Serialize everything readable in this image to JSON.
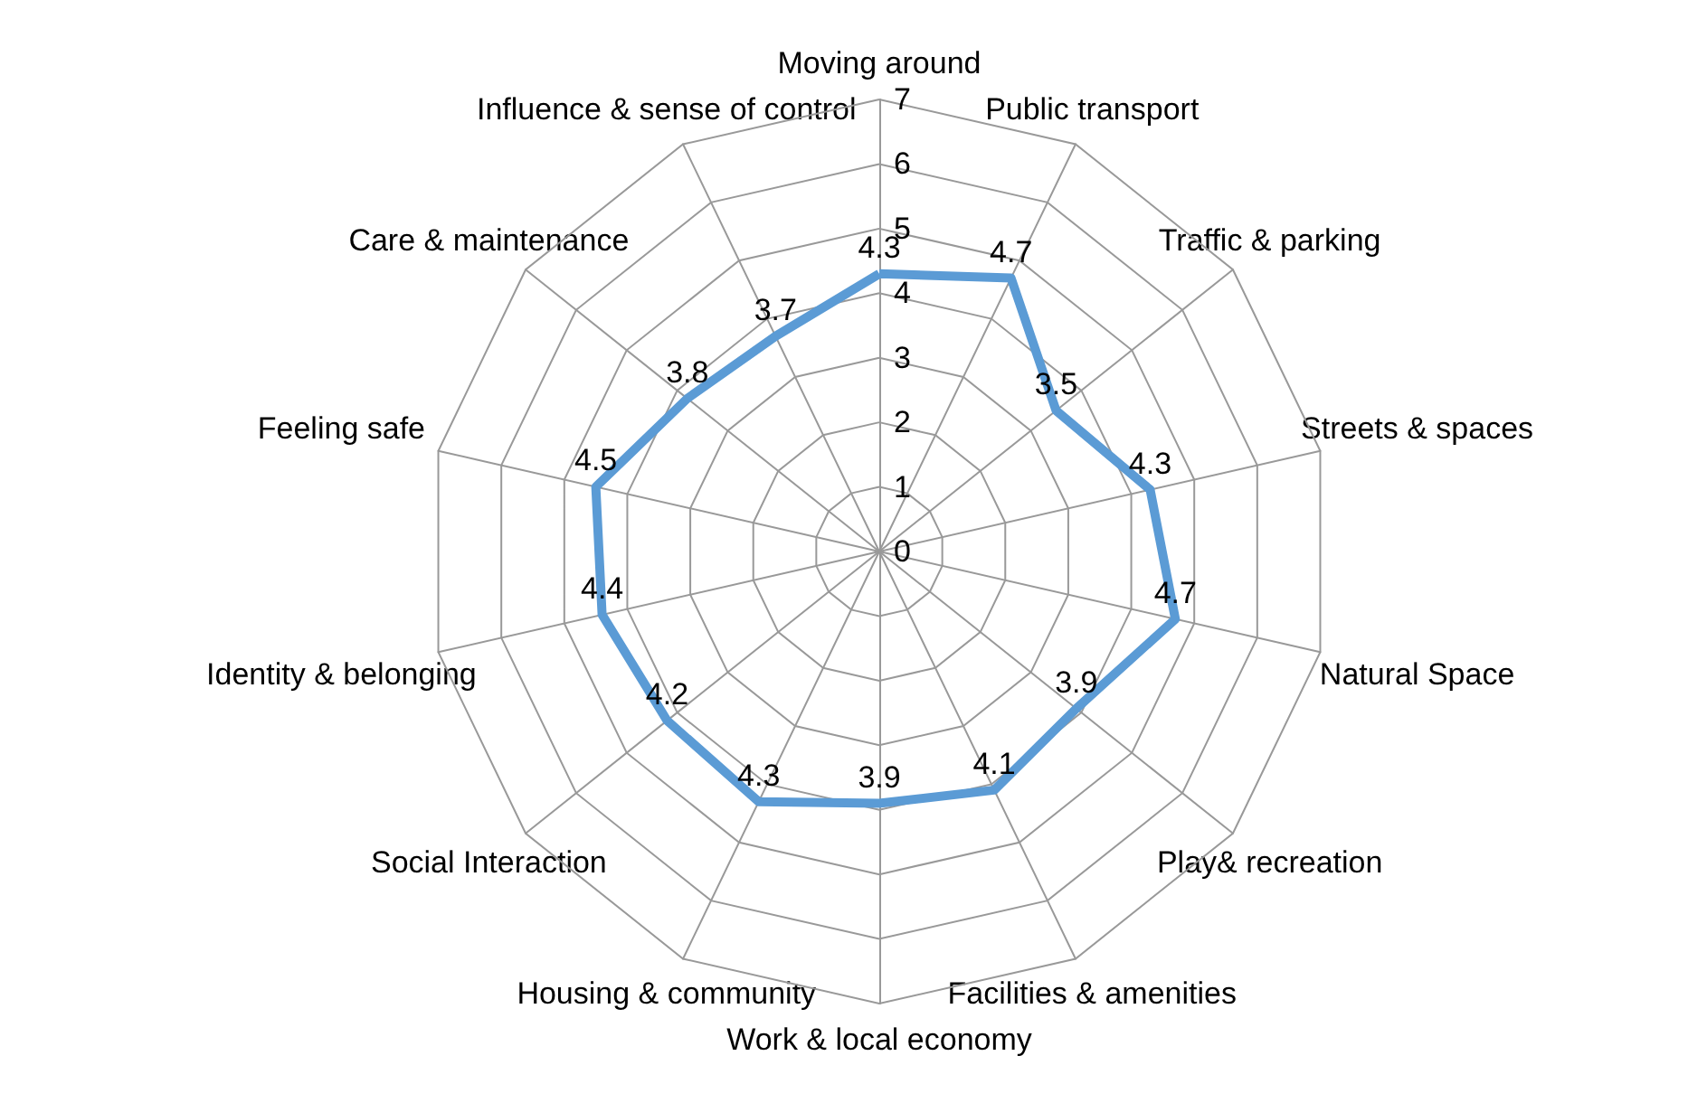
{
  "chart_data": {
    "type": "radar",
    "categories": [
      "Moving around",
      "Public transport",
      "Traffic & parking",
      "Streets & spaces",
      "Natural Space",
      "Play& recreation",
      "Facilities & amenities",
      "Work & local economy",
      "Housing & community",
      "Social Interaction",
      "Identity & belonging",
      "Feeling safe",
      "Care & maintenance",
      "Influence & sense of control"
    ],
    "series": [
      {
        "color": "#5b9bd5",
        "values": [
          4.3,
          4.7,
          3.5,
          4.3,
          4.7,
          3.9,
          4.1,
          3.9,
          4.3,
          4.2,
          4.4,
          4.5,
          3.8,
          3.7
        ]
      }
    ],
    "ylim": [
      0,
      7
    ],
    "yticks": [
      0,
      1,
      2,
      3,
      4,
      5,
      6,
      7
    ],
    "data_labels": true,
    "grid": true,
    "marker": "none",
    "line_style": "solid"
  }
}
